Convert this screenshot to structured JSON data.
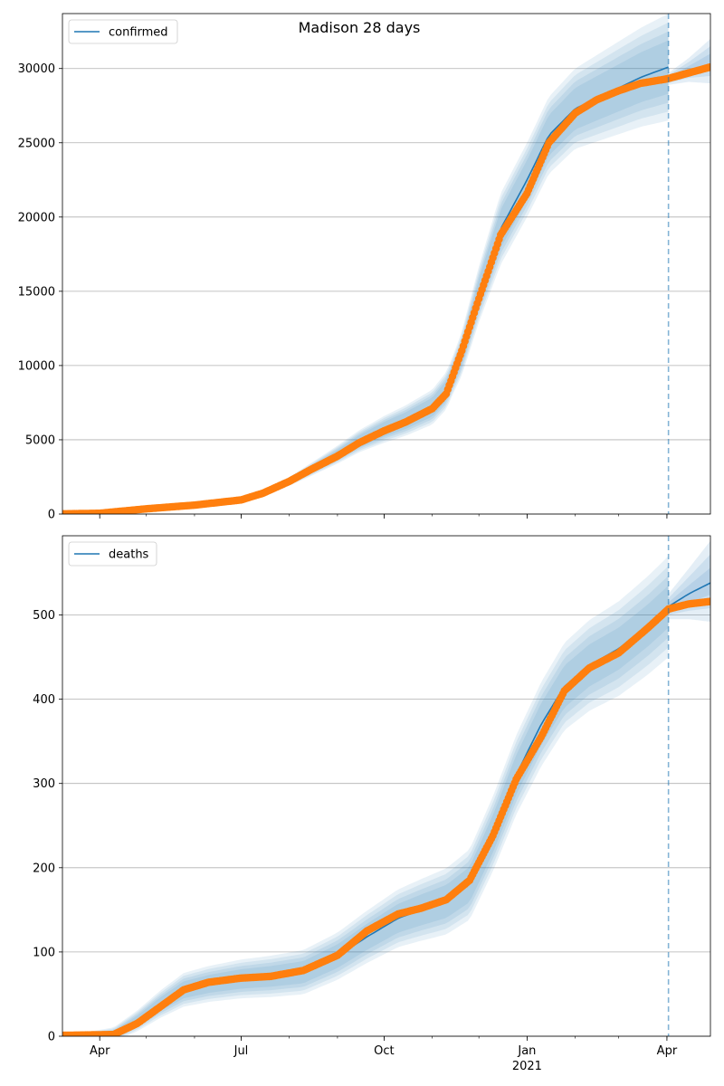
{
  "title": "Madison 28 days",
  "colors": {
    "model_line": "#1f77b4",
    "band": "#1f77b4",
    "observed": "#ff7f0e",
    "grid": "#b0b0b0",
    "forecast_line": "#1f77b4"
  },
  "x_ticks": [
    {
      "date": "2020-04-01",
      "label": "Apr",
      "sublabel": ""
    },
    {
      "date": "2020-07-01",
      "label": "Jul",
      "sublabel": ""
    },
    {
      "date": "2020-10-01",
      "label": "Oct",
      "sublabel": ""
    },
    {
      "date": "2021-01-01",
      "label": "Jan",
      "sublabel": "2021"
    },
    {
      "date": "2021-04-01",
      "label": "Apr",
      "sublabel": ""
    }
  ],
  "chart_data": [
    {
      "type": "line",
      "legend": "confirmed",
      "legend_position": "top-left",
      "grid": "horizontal",
      "xlim": [
        "2020-03-08",
        "2021-04-29"
      ],
      "ylim": [
        0,
        33700
      ],
      "y_ticks": [
        0,
        5000,
        10000,
        15000,
        20000,
        25000,
        30000
      ],
      "forecast_start": "2021-04-02",
      "series": [
        {
          "name": "confirmed",
          "kind": "model",
          "points": [
            [
              "2020-03-08",
              0
            ],
            [
              "2020-04-01",
              30
            ],
            [
              "2020-05-01",
              320
            ],
            [
              "2020-06-01",
              600
            ],
            [
              "2020-07-01",
              1000
            ],
            [
              "2020-07-15",
              1400
            ],
            [
              "2020-08-01",
              2200
            ],
            [
              "2020-08-15",
              3000
            ],
            [
              "2020-09-01",
              4000
            ],
            [
              "2020-09-15",
              4900
            ],
            [
              "2020-10-01",
              5700
            ],
            [
              "2020-10-15",
              6300
            ],
            [
              "2020-11-01",
              7200
            ],
            [
              "2020-11-10",
              8300
            ],
            [
              "2020-11-20",
              10800
            ],
            [
              "2020-12-01",
              14800
            ],
            [
              "2020-12-15",
              19200
            ],
            [
              "2021-01-01",
              22500
            ],
            [
              "2021-01-15",
              25500
            ],
            [
              "2021-02-01",
              27300
            ],
            [
              "2021-02-15",
              28000
            ],
            [
              "2021-03-01",
              28700
            ],
            [
              "2021-03-15",
              29400
            ],
            [
              "2021-04-02",
              30100
            ]
          ],
          "band_half_widths": [
            [
              [
                "2020-03-08",
                0
              ],
              [
                "2020-05-01",
                20
              ],
              [
                "2020-08-01",
                150
              ],
              [
                "2020-10-01",
                500
              ],
              [
                "2020-11-15",
                700
              ],
              [
                "2020-12-15",
                1300
              ],
              [
                "2021-02-01",
                1400
              ],
              [
                "2021-04-02",
                1800
              ]
            ],
            [
              [
                "2020-03-08",
                0
              ],
              [
                "2020-05-01",
                40
              ],
              [
                "2020-08-01",
                300
              ],
              [
                "2020-10-01",
                900
              ],
              [
                "2020-11-15",
                1300
              ],
              [
                "2020-12-15",
                2400
              ],
              [
                "2021-02-01",
                2700
              ],
              [
                "2021-04-02",
                3600
              ]
            ]
          ]
        },
        {
          "name": "",
          "kind": "observed",
          "points": [
            [
              "2020-03-08",
              10
            ],
            [
              "2020-04-01",
              50
            ],
            [
              "2020-05-01",
              350
            ],
            [
              "2020-06-01",
              600
            ],
            [
              "2020-07-01",
              950
            ],
            [
              "2020-07-15",
              1400
            ],
            [
              "2020-08-01",
              2200
            ],
            [
              "2020-08-15",
              3000
            ],
            [
              "2020-09-01",
              3900
            ],
            [
              "2020-09-15",
              4800
            ],
            [
              "2020-10-01",
              5600
            ],
            [
              "2020-10-15",
              6200
            ],
            [
              "2020-11-01",
              7100
            ],
            [
              "2020-11-10",
              8100
            ],
            [
              "2020-11-20",
              11000
            ],
            [
              "2020-12-01",
              14500
            ],
            [
              "2020-12-15",
              18800
            ],
            [
              "2021-01-01",
              21600
            ],
            [
              "2021-01-15",
              25000
            ],
            [
              "2021-02-01",
              27000
            ],
            [
              "2021-02-15",
              27900
            ],
            [
              "2021-03-01",
              28500
            ],
            [
              "2021-03-15",
              29000
            ],
            [
              "2021-04-01",
              29300
            ],
            [
              "2021-04-15",
              29700
            ],
            [
              "2021-04-29",
              30100
            ]
          ]
        }
      ],
      "post_forecast_band": {
        "points": [
          [
            "2021-04-02",
            29300
          ],
          [
            "2021-04-15",
            29900
          ],
          [
            "2021-04-29",
            30500
          ]
        ],
        "half_width_outer": [
          [
            "2021-04-02",
            400
          ],
          [
            "2021-04-15",
            800
          ],
          [
            "2021-04-29",
            1500
          ]
        ]
      }
    },
    {
      "type": "line",
      "legend": "deaths",
      "legend_position": "top-left",
      "grid": "horizontal",
      "xlim": [
        "2020-03-08",
        "2021-04-29"
      ],
      "ylim": [
        0,
        594
      ],
      "y_ticks": [
        0,
        100,
        200,
        300,
        400,
        500
      ],
      "forecast_start": "2021-04-02",
      "series": [
        {
          "name": "deaths",
          "kind": "model",
          "points": [
            [
              "2020-03-08",
              0
            ],
            [
              "2020-04-10",
              2
            ],
            [
              "2020-04-25",
              18
            ],
            [
              "2020-05-10",
              38
            ],
            [
              "2020-05-25",
              55
            ],
            [
              "2020-06-10",
              62
            ],
            [
              "2020-07-01",
              68
            ],
            [
              "2020-07-20",
              71
            ],
            [
              "2020-08-10",
              76
            ],
            [
              "2020-09-01",
              95
            ],
            [
              "2020-09-20",
              118
            ],
            [
              "2020-10-10",
              140
            ],
            [
              "2020-10-25",
              150
            ],
            [
              "2020-11-10",
              160
            ],
            [
              "2020-11-25",
              180
            ],
            [
              "2020-12-10",
              240
            ],
            [
              "2020-12-25",
              310
            ],
            [
              "2021-01-10",
              370
            ],
            [
              "2021-01-25",
              415
            ],
            [
              "2021-02-10",
              440
            ],
            [
              "2021-03-01",
              460
            ],
            [
              "2021-03-20",
              488
            ],
            [
              "2021-04-02",
              510
            ],
            [
              "2021-04-15",
              525
            ],
            [
              "2021-04-29",
              538
            ]
          ],
          "band_half_widths": [
            [
              [
                "2020-03-08",
                0
              ],
              [
                "2020-05-25",
                10
              ],
              [
                "2020-09-01",
                14
              ],
              [
                "2020-11-15",
                20
              ],
              [
                "2021-01-10",
                25
              ],
              [
                "2021-04-02",
                25
              ]
            ],
            [
              [
                "2020-03-08",
                0
              ],
              [
                "2020-05-25",
                20
              ],
              [
                "2020-09-01",
                28
              ],
              [
                "2020-11-15",
                40
              ],
              [
                "2021-01-10",
                50
              ],
              [
                "2021-04-02",
                60
              ]
            ]
          ]
        },
        {
          "name": "",
          "kind": "observed",
          "points": [
            [
              "2020-03-08",
              1
            ],
            [
              "2020-04-10",
              2
            ],
            [
              "2020-04-25",
              15
            ],
            [
              "2020-05-10",
              35
            ],
            [
              "2020-05-25",
              55
            ],
            [
              "2020-06-10",
              64
            ],
            [
              "2020-07-01",
              69
            ],
            [
              "2020-07-20",
              71
            ],
            [
              "2020-08-10",
              78
            ],
            [
              "2020-09-01",
              96
            ],
            [
              "2020-09-20",
              125
            ],
            [
              "2020-10-10",
              145
            ],
            [
              "2020-10-25",
              152
            ],
            [
              "2020-11-10",
              162
            ],
            [
              "2020-11-25",
              185
            ],
            [
              "2020-12-10",
              238
            ],
            [
              "2020-12-25",
              305
            ],
            [
              "2021-01-10",
              355
            ],
            [
              "2021-01-25",
              410
            ],
            [
              "2021-02-10",
              437
            ],
            [
              "2021-03-01",
              455
            ],
            [
              "2021-03-20",
              485
            ],
            [
              "2021-04-02",
              507
            ],
            [
              "2021-04-15",
              513
            ],
            [
              "2021-04-29",
              516
            ]
          ]
        }
      ],
      "post_forecast_band": {
        "points": [
          [
            "2021-04-02",
            510
          ],
          [
            "2021-04-15",
            525
          ],
          [
            "2021-04-29",
            540
          ]
        ],
        "half_width_outer": [
          [
            "2021-04-02",
            15
          ],
          [
            "2021-04-15",
            30
          ],
          [
            "2021-04-29",
            48
          ]
        ]
      }
    }
  ]
}
